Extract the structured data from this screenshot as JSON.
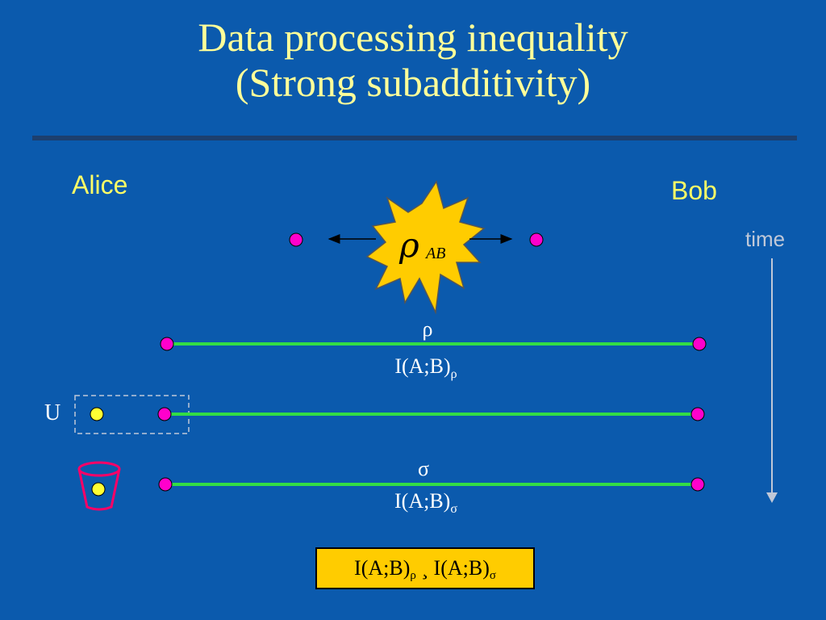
{
  "title": {
    "line1": "Data processing inequality",
    "line2": "(Strong subadditivity)"
  },
  "parties": {
    "alice": "Alice",
    "bob": "Bob"
  },
  "time_label": "time",
  "state": {
    "symbol": "ρ",
    "subscript": "AB"
  },
  "rows": {
    "rho_label": "ρ",
    "rho_info": "I(A;B)",
    "rho_info_sub": "ρ",
    "sigma_label": "σ",
    "sigma_info": "I(A;B)",
    "sigma_info_sub": "σ"
  },
  "unitary_label": "U",
  "result": {
    "left": "I(A;B)",
    "left_sub": "ρ",
    "relation": "¸",
    "right": "I(A;B)",
    "right_sub": "σ"
  },
  "colors": {
    "background": "#0b5aad",
    "title": "#ffff99",
    "party": "#ffff66",
    "wire": "#33dd44",
    "node": "#ff00cc",
    "ancilla": "#ffff33",
    "star": "#ffcc00",
    "result_box": "#ffcc00"
  },
  "icons": {
    "star": "explosion-star-icon",
    "trash": "trash-bin-icon"
  }
}
